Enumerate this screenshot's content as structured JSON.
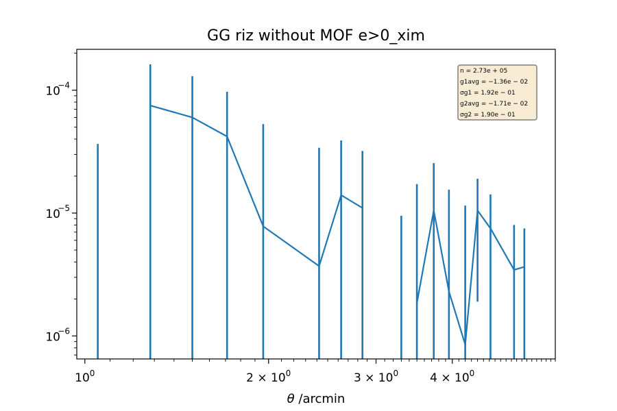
{
  "chart_data": {
    "type": "line",
    "title": "GG riz without MOF e>0_xim",
    "xlabel_symbol": "θ",
    "xlabel_rest": " /arcmin",
    "ylabel": "",
    "xscale": "log",
    "yscale": "log",
    "xlim": [
      0.97,
      5.9
    ],
    "ylim": [
      6.5e-07,
      0.000215
    ],
    "grid": false,
    "series_color": "#1f77b4",
    "x_major_ticks": [
      {
        "value": 1,
        "base": "10",
        "exp": "0",
        "coef": ""
      },
      {
        "value": 2,
        "base": "10",
        "exp": "0",
        "coef": "2 × "
      },
      {
        "value": 3,
        "base": "10",
        "exp": "0",
        "coef": "3 × "
      },
      {
        "value": 4,
        "base": "10",
        "exp": "0",
        "coef": "4 × "
      }
    ],
    "y_major_ticks": [
      {
        "value": 1e-06,
        "base": "10",
        "exp": "−6"
      },
      {
        "value": 1e-05,
        "base": "10",
        "exp": "−5"
      },
      {
        "value": 0.0001,
        "base": "10",
        "exp": "−4"
      }
    ],
    "x": [
      1.05,
      1.28,
      1.5,
      1.71,
      1.96,
      2.42,
      2.63,
      2.85,
      3.3,
      3.5,
      3.73,
      3.95,
      4.2,
      4.4,
      4.62,
      5.05,
      5.25
    ],
    "y": [
      null,
      7.5e-05,
      6e-05,
      4.2e-05,
      7.8e-06,
      3.7e-06,
      1.4e-05,
      1.1e-05,
      null,
      1.85e-06,
      1.05e-05,
      2.3e-06,
      8.5e-07,
      1.05e-05,
      7.5e-06,
      3.45e-06,
      3.65e-06
    ],
    "yerr_low": [
      6.5e-07,
      6.5e-07,
      6.5e-07,
      6.5e-07,
      6.5e-07,
      6.5e-07,
      6.5e-07,
      6.5e-07,
      6.5e-07,
      6.5e-07,
      6.5e-07,
      6.5e-07,
      6.5e-07,
      1.9e-06,
      6.5e-07,
      6.5e-07,
      6.5e-07
    ],
    "yerr_high": [
      3.65e-05,
      0.000162,
      0.00013,
      9.7e-05,
      5.3e-05,
      3.4e-05,
      3.9e-05,
      3.2e-05,
      9.5e-06,
      1.72e-05,
      2.55e-05,
      1.55e-05,
      1.15e-05,
      1.9e-05,
      1.42e-05,
      8e-06,
      7.5e-06
    ],
    "annotation_box": {
      "lines": [
        "n = 2.73e + 05",
        "g1avg = −1.36e − 02",
        "σg1 = 1.92e − 01",
        "g2avg = −1.71e − 02",
        "σg2 = 1.90e − 01"
      ],
      "face_color": "#f8ecd4",
      "edge_color": "#7f7f7f",
      "placement": "top-right"
    }
  }
}
